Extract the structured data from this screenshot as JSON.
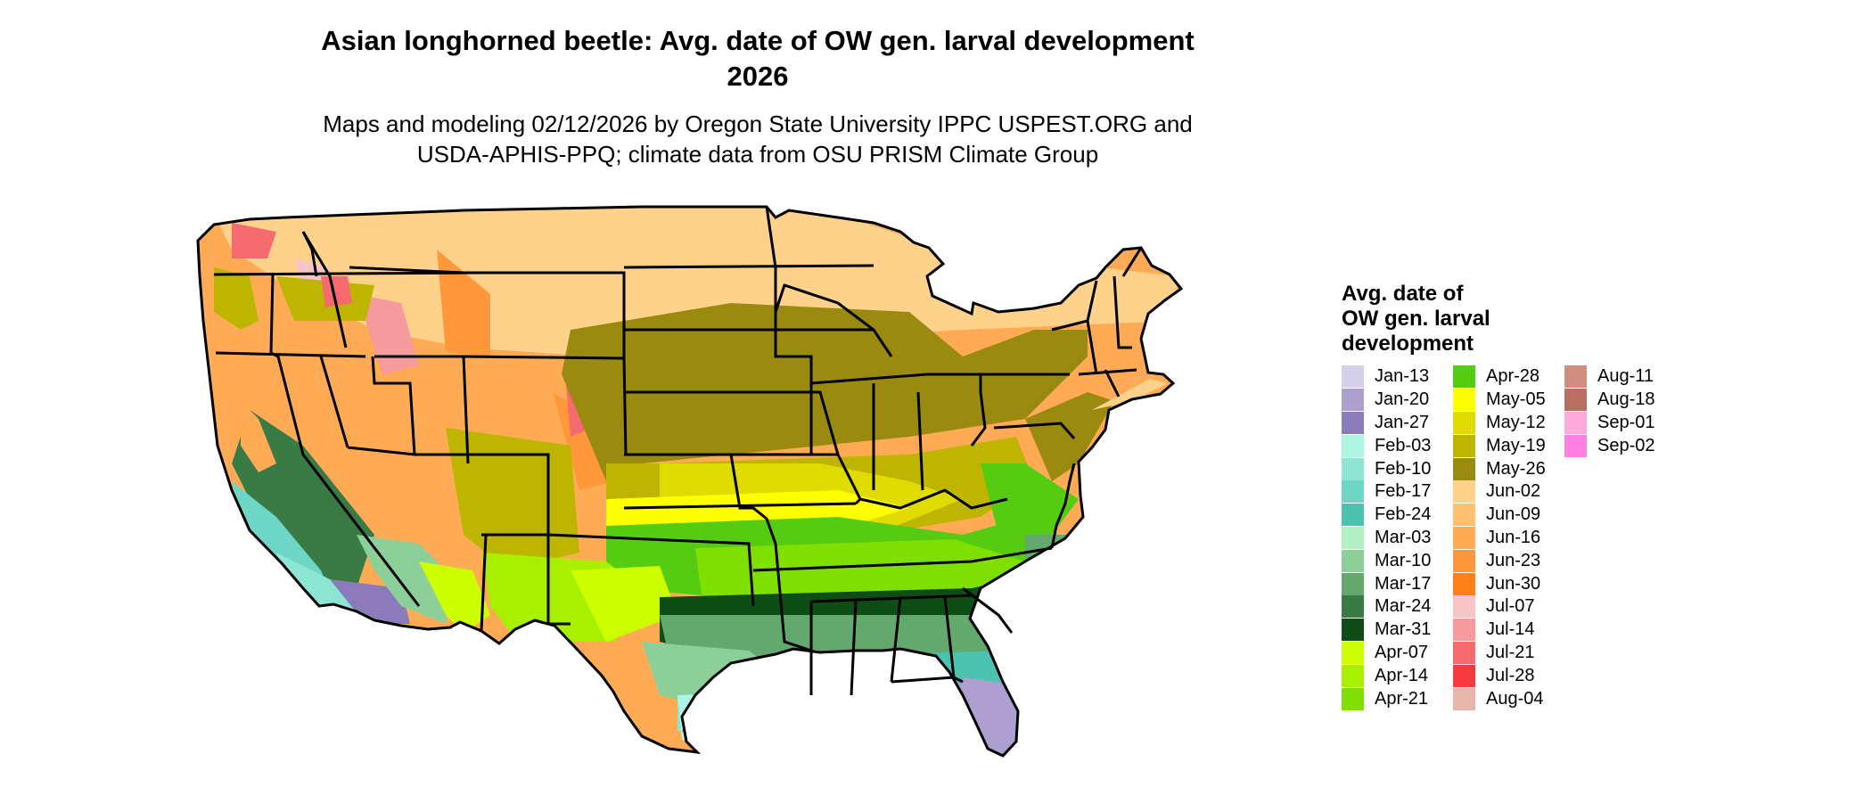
{
  "title_line1": "Asian longhorned beetle: Avg. date of OW gen. larval development",
  "title_line2": "2026",
  "subtitle_line1": "Maps and modeling 02/12/2026 by Oregon State University IPPC USPEST.ORG and",
  "subtitle_line2": "USDA-APHIS-PPQ; climate data from OSU PRISM Climate Group",
  "legend": {
    "title_line1": "Avg. date of",
    "title_line2": "OW gen. larval",
    "title_line3": "development",
    "items": [
      {
        "label": "Jan-13",
        "color": "#d6d0ea"
      },
      {
        "label": "Jan-20",
        "color": "#ad9fcf"
      },
      {
        "label": "Jan-27",
        "color": "#8b7bbb"
      },
      {
        "label": "Feb-03",
        "color": "#aff5e4"
      },
      {
        "label": "Feb-10",
        "color": "#8de5d3"
      },
      {
        "label": "Feb-17",
        "color": "#6dd6c4"
      },
      {
        "label": "Feb-24",
        "color": "#4cc3b1"
      },
      {
        "label": "Mar-03",
        "color": "#b2efc2"
      },
      {
        "label": "Mar-10",
        "color": "#8ccf98"
      },
      {
        "label": "Mar-17",
        "color": "#63a86d"
      },
      {
        "label": "Mar-24",
        "color": "#3a7a44"
      },
      {
        "label": "Mar-31",
        "color": "#0f4d17"
      },
      {
        "label": "Apr-07",
        "color": "#ccff00"
      },
      {
        "label": "Apr-14",
        "color": "#a8f000"
      },
      {
        "label": "Apr-21",
        "color": "#7fe000"
      },
      {
        "label": "Apr-28",
        "color": "#55cc11"
      },
      {
        "label": "May-05",
        "color": "#ffff00"
      },
      {
        "label": "May-12",
        "color": "#e0db00"
      },
      {
        "label": "May-19",
        "color": "#bdb500"
      },
      {
        "label": "May-26",
        "color": "#9a8a10"
      },
      {
        "label": "Jun-02",
        "color": "#ffd28c"
      },
      {
        "label": "Jun-09",
        "color": "#ffbf70"
      },
      {
        "label": "Jun-16",
        "color": "#ffab55"
      },
      {
        "label": "Jun-23",
        "color": "#ff973b"
      },
      {
        "label": "Jun-30",
        "color": "#ff8018"
      },
      {
        "label": "Jul-07",
        "color": "#f7c5c8"
      },
      {
        "label": "Jul-14",
        "color": "#f59a9d"
      },
      {
        "label": "Jul-21",
        "color": "#f56a6e"
      },
      {
        "label": "Jul-28",
        "color": "#f53b3d"
      },
      {
        "label": "Aug-04",
        "color": "#e6b5ab"
      },
      {
        "label": "Aug-11",
        "color": "#d08e80"
      },
      {
        "label": "Aug-18",
        "color": "#b86e60"
      },
      {
        "label": "Sep-01",
        "color": "#ffaadd"
      },
      {
        "label": "Sep-02",
        "color": "#ff80e0"
      }
    ]
  }
}
